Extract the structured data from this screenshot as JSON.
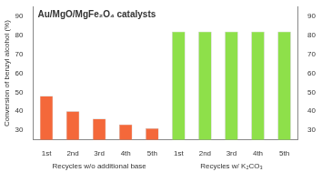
{
  "chart_data": {
    "type": "bar",
    "title": "Au/MgO/MgFe₂O₄ catalysts",
    "y_label": "Conversion of benzyl alcohol (%)",
    "categories": [
      "1st",
      "2nd",
      "3rd",
      "4th",
      "5th",
      "1st",
      "2nd",
      "3rd",
      "4th",
      "5th"
    ],
    "series": [
      {
        "name": "Recycles w/o additional base",
        "color": "#f4683a",
        "values": [
          48,
          40,
          36,
          33,
          31,
          null,
          null,
          null,
          null,
          null
        ]
      },
      {
        "name": "Recycles w/ K₂CO₃",
        "color": "#8ee04a",
        "values": [
          null,
          null,
          null,
          null,
          null,
          82,
          82,
          82,
          82,
          82
        ]
      }
    ],
    "ylim": [
      25,
      95
    ],
    "yticks": [
      30,
      40,
      50,
      60,
      70,
      80,
      90
    ],
    "y2lim": [
      25,
      95
    ],
    "y2ticks": [
      30,
      40,
      50,
      60,
      70,
      80,
      90
    ],
    "grid": false
  }
}
